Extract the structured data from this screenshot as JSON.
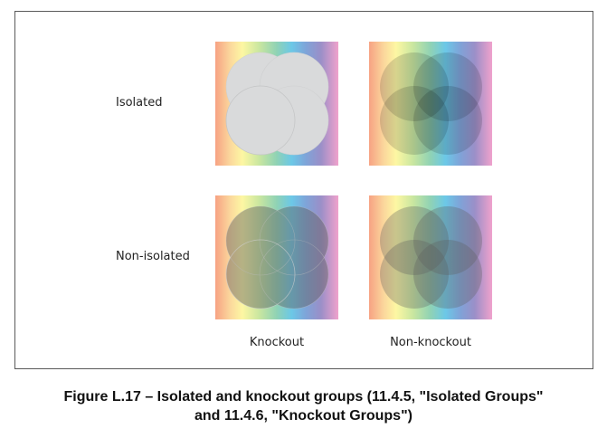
{
  "rows": [
    "Isolated",
    "Non-isolated"
  ],
  "columns": [
    "Knockout",
    "Non-knockout"
  ],
  "caption": {
    "line1": "Figure L.17 –  Isolated and knockout groups (11.4.5, \"Isolated Groups\"",
    "line2": "and 11.4.6, \"Knockout Groups\")"
  },
  "colors": {
    "spectrum": [
      "#f7a283",
      "#fbd79c",
      "#fdf7a3",
      "#c8e6a0",
      "#8fd2b5",
      "#6cc8e7",
      "#7fa3d8",
      "#9b8fc8",
      "#d29ac8",
      "#f0a2cc"
    ],
    "circle_fill": "#d9dadb",
    "circle_stroke": "#c9cacb",
    "overlap_dark": "#9fa0a2"
  }
}
